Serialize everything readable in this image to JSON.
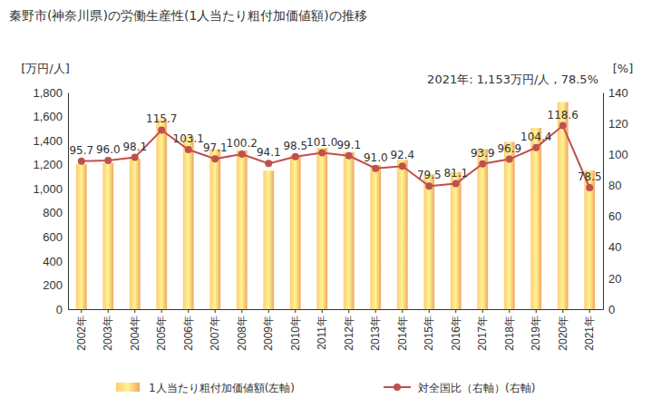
{
  "chart_data": {
    "type": "bar",
    "title": "秦野市(神奈川県)の労働生産性(1人当たり粗付加価値額)の推移",
    "annotation": "2021年: 1,153万円/人 , 78.5%",
    "y_label": "[万円/人]",
    "y2_label": "[%]",
    "categories": [
      "2002年",
      "2003年",
      "2004年",
      "2005年",
      "2006年",
      "2007年",
      "2008年",
      "2009年",
      "2010年",
      "2011年",
      "2012年",
      "2013年",
      "2014年",
      "2015年",
      "2016年",
      "2017年",
      "2018年",
      "2019年",
      "2020年",
      "2021年"
    ],
    "series": [
      {
        "name": "1人当たり粗付加価値額(左軸)",
        "type": "bar",
        "color": "#f2a561",
        "values": [
          1205,
          1215,
          1250,
          1580,
          1435,
          1330,
          1320,
          1150,
          1280,
          1340,
          1305,
          1195,
          1240,
          1120,
          1140,
          1330,
          1390,
          1505,
          1720,
          1153
        ]
      },
      {
        "name": "対全国比（右軸）(右軸)",
        "type": "line",
        "axis": "y2",
        "color": "#c0504d",
        "marker": "circle",
        "data_labels": true,
        "values": [
          95.7,
          96.0,
          98.1,
          115.7,
          103.1,
          97.1,
          100.2,
          94.1,
          98.5,
          101.0,
          99.1,
          91.0,
          92.4,
          79.5,
          81.1,
          93.9,
          96.9,
          104.4,
          118.6,
          78.5
        ],
        "value_labels": [
          "95.7",
          "96.0",
          "98.1",
          "115.7",
          "103.1",
          "97.1",
          "100.2",
          "94.1",
          "98.5",
          "101.0",
          "99.1",
          "91.0",
          "92.4",
          "79.5",
          "81.1",
          "93.9",
          "96.9",
          "104.4",
          "118.6",
          "78.5"
        ]
      }
    ],
    "ylim": [
      0,
      1800
    ],
    "yticks": [
      0,
      200,
      400,
      600,
      800,
      {
        "value": 1000,
        "label": "1,000"
      },
      {
        "value": 1200,
        "label": "1,200"
      },
      {
        "value": 1400,
        "label": "1,400"
      },
      {
        "value": 1600,
        "label": "1,600"
      },
      {
        "value": 1800,
        "label": "1,800"
      }
    ],
    "y2lim": [
      0,
      140
    ],
    "y2ticks": [
      0,
      20,
      40,
      60,
      80,
      100,
      120,
      140
    ],
    "grid": false,
    "legend": "bottom"
  }
}
